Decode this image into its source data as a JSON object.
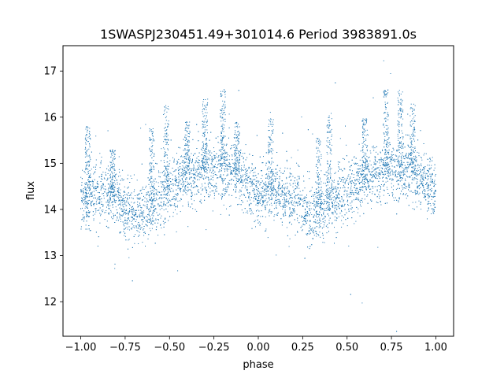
{
  "chart_data": {
    "type": "scatter",
    "title": "1SWASPJ230451.49+301014.6 Period 3983891.0s",
    "xlabel": "phase",
    "ylabel": "flux",
    "xlim": [
      -1.1,
      1.1
    ],
    "ylim": [
      11.25,
      17.55
    ],
    "x_ticks": [
      -1.0,
      -0.75,
      -0.5,
      -0.25,
      0.0,
      0.25,
      0.5,
      0.75,
      1.0
    ],
    "x_tick_labels": [
      "−1.00",
      "−0.75",
      "−0.50",
      "−0.25",
      "0.00",
      "0.25",
      "0.50",
      "0.75",
      "1.00"
    ],
    "y_ticks": [
      12,
      13,
      14,
      15,
      16,
      17
    ],
    "y_tick_labels": [
      "12",
      "13",
      "14",
      "15",
      "16",
      "17"
    ],
    "grid": false,
    "point_color": "#1f77b4",
    "series": [
      {
        "phase_range": [
          -1.0,
          1.0
        ],
        "trend": [
          {
            "x": -1.0,
            "y": 14.2
          },
          {
            "x": -0.9,
            "y": 14.35
          },
          {
            "x": -0.8,
            "y": 14.25
          },
          {
            "x": -0.7,
            "y": 13.85
          },
          {
            "x": -0.6,
            "y": 14.1
          },
          {
            "x": -0.5,
            "y": 14.45
          },
          {
            "x": -0.4,
            "y": 14.7
          },
          {
            "x": -0.3,
            "y": 14.85
          },
          {
            "x": -0.2,
            "y": 14.9
          },
          {
            "x": -0.1,
            "y": 14.7
          },
          {
            "x": 0.0,
            "y": 14.35
          },
          {
            "x": 0.1,
            "y": 14.35
          },
          {
            "x": 0.2,
            "y": 14.25
          },
          {
            "x": 0.3,
            "y": 13.85
          },
          {
            "x": 0.4,
            "y": 14.1
          },
          {
            "x": 0.5,
            "y": 14.45
          },
          {
            "x": 0.6,
            "y": 14.7
          },
          {
            "x": 0.7,
            "y": 14.85
          },
          {
            "x": 0.8,
            "y": 14.9
          },
          {
            "x": 0.9,
            "y": 14.7
          },
          {
            "x": 1.0,
            "y": 14.35
          }
        ],
        "flares": [
          {
            "x": -0.96,
            "y": 15.5
          },
          {
            "x": -0.82,
            "y": 15.0
          },
          {
            "x": -0.6,
            "y": 15.5
          },
          {
            "x": -0.52,
            "y": 16.0
          },
          {
            "x": -0.4,
            "y": 15.6
          },
          {
            "x": -0.3,
            "y": 16.1
          },
          {
            "x": -0.2,
            "y": 16.3
          },
          {
            "x": -0.12,
            "y": 15.6
          },
          {
            "x": 0.07,
            "y": 15.7
          },
          {
            "x": 0.34,
            "y": 15.3
          },
          {
            "x": 0.4,
            "y": 15.8
          },
          {
            "x": 0.6,
            "y": 15.7
          },
          {
            "x": 0.72,
            "y": 16.3
          },
          {
            "x": 0.8,
            "y": 16.3
          },
          {
            "x": 0.87,
            "y": 16.0
          }
        ]
      }
    ]
  }
}
